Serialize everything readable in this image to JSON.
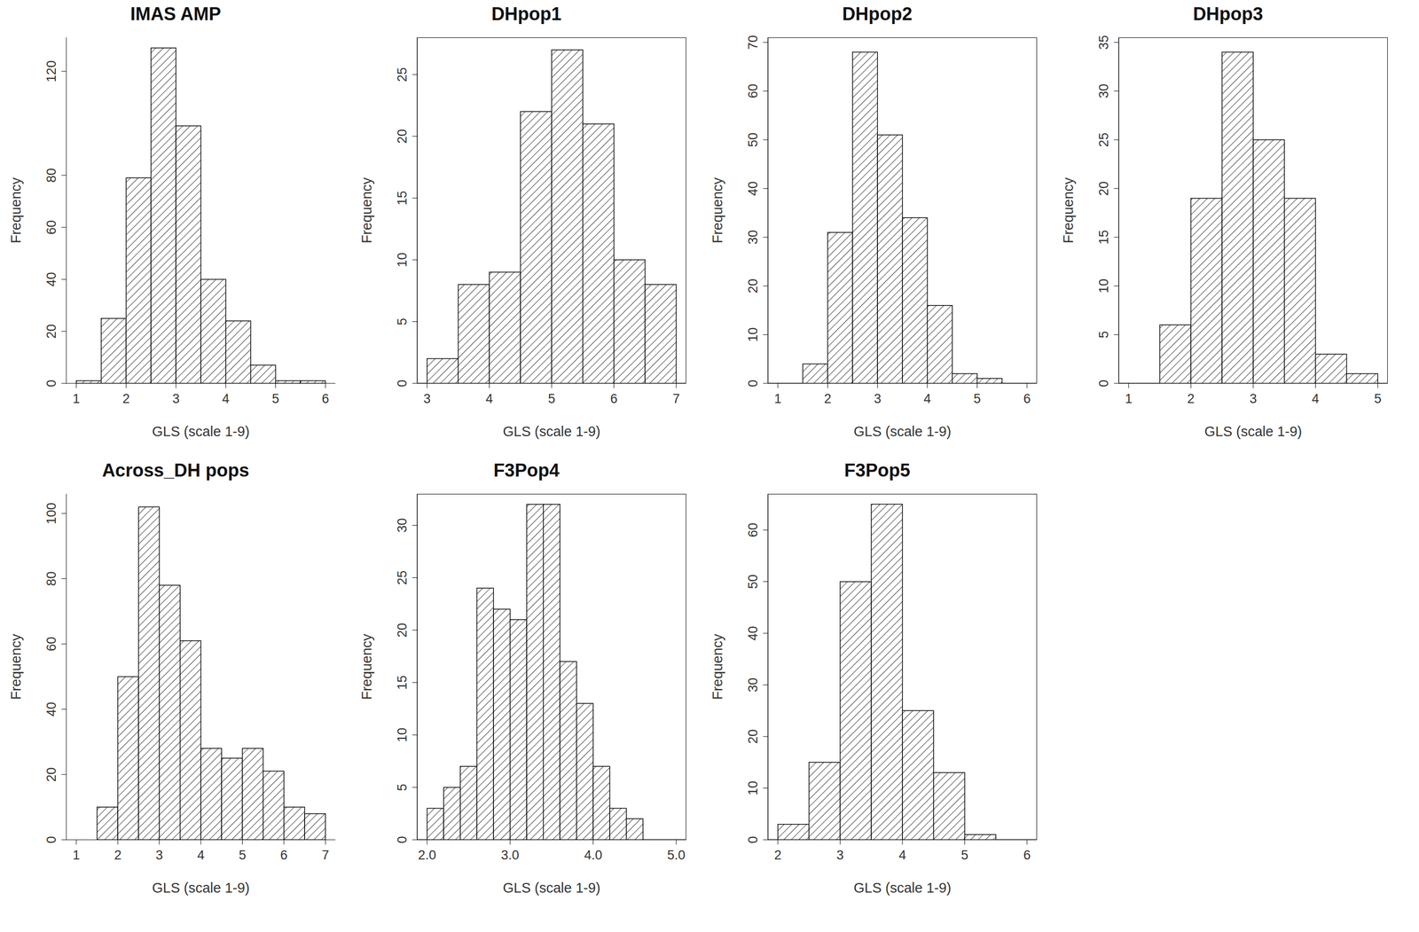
{
  "chart_data": [
    {
      "type": "histogram",
      "title": "IMAS AMP",
      "x_label": "GLS (scale 1-9)",
      "y_label": "Frequency",
      "bins": [
        1,
        1.5,
        2,
        2.5,
        3,
        3.5,
        4,
        4.5,
        5,
        5.5,
        6
      ],
      "values": [
        1,
        25,
        79,
        129,
        99,
        40,
        24,
        7,
        1,
        1
      ],
      "xlim": [
        0.8,
        6.2
      ],
      "xticks": [
        1,
        2,
        3,
        4,
        5,
        6
      ],
      "ylim": [
        0,
        133
      ],
      "yticks": [
        0,
        20,
        40,
        60,
        80,
        120
      ]
    },
    {
      "type": "histogram",
      "title": "DHpop1",
      "x_label": "GLS (scale 1-9)",
      "y_label": "Frequency",
      "bins": [
        3,
        3.5,
        4,
        4.5,
        5,
        5.5,
        6,
        6.5,
        7
      ],
      "values": [
        2,
        8,
        9,
        22,
        27,
        21,
        10,
        8
      ],
      "xlim": [
        2.84,
        7.16
      ],
      "xticks": [
        3,
        4,
        5,
        6,
        7
      ],
      "ylim": [
        0,
        28
      ],
      "yticks": [
        0,
        5,
        10,
        15,
        20,
        25
      ]
    },
    {
      "type": "histogram",
      "title": "DHpop2",
      "x_label": "GLS (scale 1-9)",
      "y_label": "Frequency",
      "bins": [
        1.5,
        2,
        2.5,
        3,
        3.5,
        4,
        4.5,
        5,
        5.5
      ],
      "values": [
        4,
        31,
        68,
        51,
        34,
        16,
        2,
        1
      ],
      "xlim": [
        0.8,
        6.2
      ],
      "xticks": [
        1,
        2,
        3,
        4,
        5,
        6
      ],
      "ylim": [
        0,
        71
      ],
      "yticks": [
        0,
        10,
        20,
        30,
        40,
        50,
        60,
        70
      ]
    },
    {
      "type": "histogram",
      "title": "DHpop3",
      "x_label": "GLS (scale 1-9)",
      "y_label": "Frequency",
      "bins": [
        1.5,
        2,
        2.5,
        3,
        3.5,
        4,
        4.5,
        5
      ],
      "values": [
        6,
        19,
        34,
        25,
        19,
        3,
        1
      ],
      "xlim": [
        0.84,
        5.16
      ],
      "xticks": [
        1,
        2,
        3,
        4,
        5
      ],
      "ylim": [
        0,
        35.5
      ],
      "yticks": [
        0,
        5,
        10,
        15,
        20,
        25,
        30,
        35
      ]
    },
    {
      "type": "histogram",
      "title": "Across_DH pops",
      "x_label": "GLS (scale 1-9)",
      "y_label": "Frequency",
      "bins": [
        1.5,
        2,
        2.5,
        3,
        3.5,
        4,
        4.5,
        5,
        5.5,
        6,
        6.5,
        7
      ],
      "values": [
        10,
        50,
        102,
        78,
        61,
        28,
        25,
        28,
        21,
        10,
        8
      ],
      "xlim": [
        0.76,
        7.24
      ],
      "xticks": [
        1,
        2,
        3,
        4,
        5,
        6,
        7
      ],
      "ylim": [
        0,
        106
      ],
      "yticks": [
        0,
        20,
        40,
        60,
        80,
        100
      ]
    },
    {
      "type": "histogram",
      "title": "F3Pop4",
      "x_label": "GLS (scale 1-9)",
      "y_label": "Frequency",
      "bins": [
        2,
        2.2,
        2.4,
        2.6,
        2.8,
        3,
        3.2,
        3.4,
        3.6,
        3.8,
        4,
        4.2,
        4.4,
        4.6
      ],
      "values": [
        3,
        5,
        7,
        24,
        22,
        21,
        32,
        32,
        17,
        13,
        7,
        3,
        2
      ],
      "xlim": [
        1.88,
        5.12
      ],
      "xticks": [
        {
          "value": 2,
          "label": "2.0"
        },
        {
          "value": 3,
          "label": "3.0"
        },
        {
          "value": 4,
          "label": "4.0"
        },
        {
          "value": 5,
          "label": "5.0"
        }
      ],
      "ylim": [
        0,
        33
      ],
      "yticks": [
        0,
        5,
        10,
        15,
        20,
        25,
        30
      ]
    },
    {
      "type": "histogram",
      "title": "F3Pop5",
      "x_label": "GLS (scale 1-9)",
      "y_label": "Frequency",
      "bins": [
        2,
        2.5,
        3,
        3.5,
        4,
        4.5,
        5,
        5.5
      ],
      "values": [
        3,
        15,
        50,
        65,
        25,
        13,
        1
      ],
      "xlim": [
        1.84,
        6.16
      ],
      "xticks": [
        2,
        3,
        4,
        5,
        6
      ],
      "ylim": [
        0,
        67
      ],
      "yticks": [
        0,
        10,
        20,
        30,
        40,
        50,
        60
      ]
    }
  ]
}
